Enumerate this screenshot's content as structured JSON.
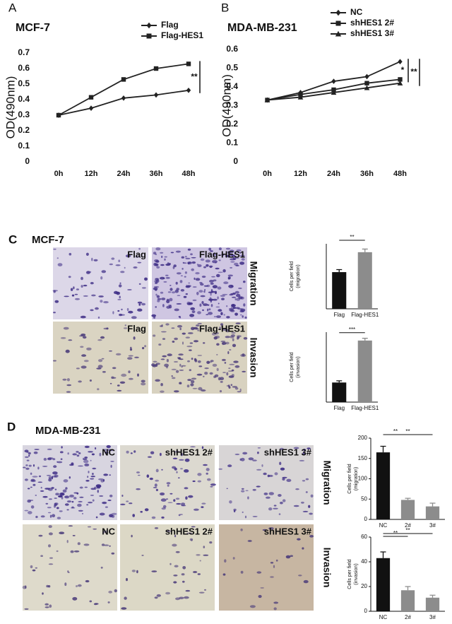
{
  "chart_data": [
    {
      "type": "line",
      "panel": "A",
      "title": "MCF-7",
      "y_label": "OD(490nm)",
      "categories": [
        "0h",
        "12h",
        "24h",
        "36h",
        "48h"
      ],
      "series": [
        {
          "name": "Flag",
          "color": "#222222",
          "marker": "diamond",
          "values": [
            0.3,
            0.345,
            0.41,
            0.43,
            0.46
          ]
        },
        {
          "name": "Flag-HES1",
          "color": "#222222",
          "marker": "square",
          "values": [
            0.3,
            0.415,
            0.53,
            0.6,
            0.63
          ]
        }
      ],
      "ylim": [
        0,
        0.7
      ],
      "yticks": [
        0,
        0.1,
        0.2,
        0.3,
        0.4,
        0.5,
        0.6,
        0.7
      ],
      "annotations": [
        "**"
      ]
    },
    {
      "type": "line",
      "panel": "B",
      "title": "MDA-MB-231",
      "y_label": "OD(490nm)",
      "categories": [
        "0h",
        "12h",
        "24h",
        "36h",
        "48h"
      ],
      "series": [
        {
          "name": "NC",
          "color": "#222222",
          "marker": "diamond",
          "values": [
            0.33,
            0.37,
            0.43,
            0.455,
            0.535
          ]
        },
        {
          "name": "shHES1 2#",
          "color": "#222222",
          "marker": "square",
          "values": [
            0.33,
            0.36,
            0.385,
            0.42,
            0.44
          ]
        },
        {
          "name": "shHES1 3#",
          "color": "#222222",
          "marker": "triangle",
          "values": [
            0.33,
            0.345,
            0.37,
            0.395,
            0.42
          ]
        }
      ],
      "ylim": [
        0,
        0.6
      ],
      "yticks": [
        0,
        0.1,
        0.2,
        0.3,
        0.4,
        0.5,
        0.6
      ],
      "annotations": [
        "*",
        "**"
      ]
    },
    {
      "type": "bar",
      "y_label": "Cells per field",
      "y_label_sub": "(migration)",
      "categories": [
        "Flag",
        "Flag-HES1"
      ],
      "values": [
        175,
        270
      ],
      "errors": [
        12,
        15
      ],
      "colors": [
        "#111111",
        "#8c8c8c"
      ],
      "ylim": [
        0,
        310
      ],
      "annotations": [
        "**"
      ]
    },
    {
      "type": "bar",
      "y_label": "Cells per field",
      "y_label_sub": "(invasion)",
      "categories": [
        "Flag",
        "Flag-HES1"
      ],
      "values": [
        70,
        220
      ],
      "errors": [
        6,
        8
      ],
      "colors": [
        "#111111",
        "#8c8c8c"
      ],
      "ylim": [
        0,
        250
      ],
      "annotations": [
        "***"
      ]
    },
    {
      "type": "bar",
      "y_label": "Cells per field",
      "y_label_sub": "(migration)",
      "categories": [
        "NC",
        "2#",
        "3#"
      ],
      "values": [
        165,
        48,
        32
      ],
      "errors": [
        15,
        4,
        8
      ],
      "colors": [
        "#111111",
        "#8c8c8c",
        "#8c8c8c"
      ],
      "ylim": [
        0,
        200
      ],
      "yticks": [
        0,
        50,
        100,
        150,
        200
      ],
      "annotations": [
        "**",
        "**"
      ]
    },
    {
      "type": "bar",
      "y_label": "Cells per field",
      "y_label_sub": "(invasion)",
      "categories": [
        "NC",
        "2#",
        "3#"
      ],
      "values": [
        43,
        17,
        11
      ],
      "errors": [
        5,
        3,
        2
      ],
      "colors": [
        "#111111",
        "#8c8c8c",
        "#8c8c8c"
      ],
      "ylim": [
        0,
        60
      ],
      "yticks": [
        0,
        20,
        40,
        60
      ],
      "annotations": [
        "**",
        "**"
      ]
    }
  ],
  "image_panels": [
    {
      "panel": "C",
      "title": "MCF-7",
      "row_labels": [
        "Migration",
        "Invasion"
      ],
      "image_labels": [
        [
          "Flag",
          "Flag-HES1"
        ],
        [
          "Flag",
          "Flag-HES1"
        ]
      ]
    },
    {
      "panel": "D",
      "title": "MDA-MB-231",
      "row_labels": [
        "Migration",
        "Invasion"
      ],
      "image_labels": [
        [
          "NC",
          "shHES1 2#",
          "shHES1 3#"
        ],
        [
          "NC",
          "shHES1 2#",
          "shHES1 3#"
        ]
      ]
    }
  ]
}
